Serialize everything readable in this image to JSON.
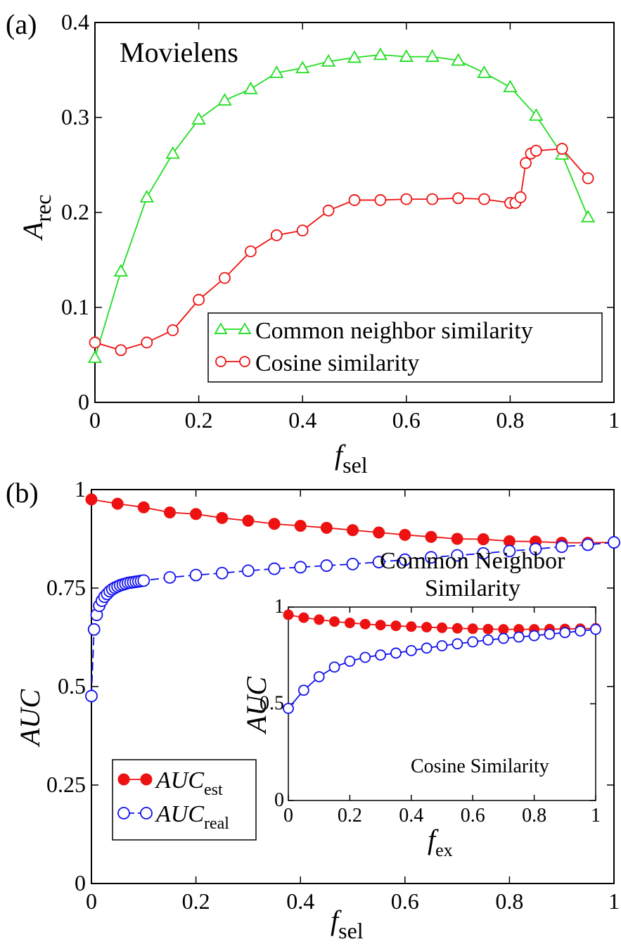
{
  "chart_data": [
    {
      "type": "line",
      "panel_label": "(a)",
      "title": "Movielens",
      "xlabel": "f",
      "xlabel_sub": "sel",
      "ylabel": "A",
      "ylabel_sub": "rec",
      "xlim": [
        0,
        1
      ],
      "ylim": [
        0,
        0.4
      ],
      "xticks": [
        "0",
        "0.2",
        "0.4",
        "0.6",
        "0.8",
        "1"
      ],
      "yticks": [
        "0",
        "0.1",
        "0.2",
        "0.3",
        "0.4"
      ],
      "legend_position": "bottom-right",
      "series": [
        {
          "name": "Common neighbor similarity",
          "color": "#22dd22",
          "marker": "triangle",
          "x": [
            0,
            0.05,
            0.1,
            0.15,
            0.2,
            0.25,
            0.3,
            0.35,
            0.4,
            0.45,
            0.5,
            0.55,
            0.6,
            0.65,
            0.7,
            0.75,
            0.8,
            0.85,
            0.9,
            0.95
          ],
          "y": [
            0.047,
            0.138,
            0.216,
            0.262,
            0.298,
            0.318,
            0.33,
            0.347,
            0.352,
            0.359,
            0.363,
            0.366,
            0.364,
            0.364,
            0.36,
            0.347,
            0.332,
            0.302,
            0.261,
            0.195
          ]
        },
        {
          "name": "Cosine similarity",
          "color": "#ee1111",
          "marker": "circle",
          "x": [
            0,
            0.05,
            0.1,
            0.15,
            0.2,
            0.25,
            0.3,
            0.35,
            0.4,
            0.45,
            0.5,
            0.55,
            0.6,
            0.65,
            0.7,
            0.75,
            0.8,
            0.81,
            0.82,
            0.83,
            0.84,
            0.85,
            0.9,
            0.95
          ],
          "y": [
            0.063,
            0.055,
            0.063,
            0.076,
            0.108,
            0.131,
            0.159,
            0.176,
            0.181,
            0.202,
            0.213,
            0.213,
            0.214,
            0.214,
            0.215,
            0.214,
            0.21,
            0.21,
            0.216,
            0.252,
            0.262,
            0.265,
            0.267,
            0.236
          ]
        }
      ]
    },
    {
      "type": "line",
      "panel_label": "(b)",
      "xlabel": "f",
      "xlabel_sub": "sel",
      "ylabel": "AUC",
      "xlim": [
        0,
        1
      ],
      "ylim": [
        0,
        1
      ],
      "xticks": [
        "0",
        "0.2",
        "0.4",
        "0.6",
        "0.8",
        "1"
      ],
      "yticks": [
        "0",
        "0.25",
        "0.5",
        "0.75",
        "1"
      ],
      "annotation": [
        "Common Neighbor",
        "Similarity"
      ],
      "legend_position": "bottom-left",
      "series": [
        {
          "name": "AUC",
          "name_sub": "est",
          "color": "#ee1111",
          "marker": "filled-circle",
          "line": "solid",
          "x": [
            0,
            0.05,
            0.1,
            0.15,
            0.2,
            0.25,
            0.3,
            0.35,
            0.4,
            0.45,
            0.5,
            0.55,
            0.6,
            0.65,
            0.7,
            0.75,
            0.8,
            0.85,
            0.9,
            0.95,
            1
          ],
          "y": [
            0.975,
            0.964,
            0.955,
            0.942,
            0.938,
            0.928,
            0.921,
            0.913,
            0.908,
            0.903,
            0.897,
            0.891,
            0.885,
            0.88,
            0.875,
            0.874,
            0.869,
            0.868,
            0.865,
            0.865,
            0.866
          ]
        },
        {
          "name": "AUC",
          "name_sub": "real",
          "color": "#1111ee",
          "marker": "circle",
          "line": "dashed",
          "x": [
            0,
            0.005,
            0.01,
            0.015,
            0.02,
            0.025,
            0.03,
            0.035,
            0.04,
            0.045,
            0.05,
            0.055,
            0.06,
            0.065,
            0.07,
            0.075,
            0.08,
            0.085,
            0.09,
            0.095,
            0.1,
            0.15,
            0.2,
            0.25,
            0.3,
            0.35,
            0.4,
            0.45,
            0.5,
            0.55,
            0.6,
            0.65,
            0.7,
            0.75,
            0.8,
            0.85,
            0.9,
            0.95,
            1
          ],
          "y": [
            0.476,
            0.645,
            0.682,
            0.705,
            0.718,
            0.728,
            0.735,
            0.742,
            0.747,
            0.751,
            0.754,
            0.757,
            0.759,
            0.761,
            0.763,
            0.764,
            0.765,
            0.766,
            0.767,
            0.768,
            0.769,
            0.777,
            0.783,
            0.788,
            0.794,
            0.799,
            0.803,
            0.807,
            0.811,
            0.816,
            0.822,
            0.828,
            0.833,
            0.838,
            0.844,
            0.849,
            0.855,
            0.86,
            0.866
          ]
        }
      ],
      "inset": {
        "type": "line",
        "xlabel": "f",
        "xlabel_sub": "ex",
        "ylabel": "AUC",
        "annotation": "Cosine Similarity",
        "xlim": [
          0,
          1
        ],
        "ylim": [
          0,
          1
        ],
        "xticks": [
          "0",
          "0.2",
          "0.4",
          "0.6",
          "0.8",
          "1"
        ],
        "yticks": [
          "0",
          "0.5",
          "1"
        ],
        "series": [
          {
            "name": "AUC",
            "name_sub": "est",
            "color": "#ee1111",
            "marker": "filled-circle",
            "x": [
              0,
              0.05,
              0.1,
              0.15,
              0.2,
              0.25,
              0.3,
              0.35,
              0.4,
              0.45,
              0.5,
              0.55,
              0.6,
              0.65,
              0.7,
              0.75,
              0.8,
              0.85,
              0.9,
              0.95,
              1
            ],
            "y": [
              0.96,
              0.945,
              0.935,
              0.925,
              0.918,
              0.912,
              0.907,
              0.903,
              0.899,
              0.896,
              0.893,
              0.89,
              0.888,
              0.886,
              0.885,
              0.885,
              0.885,
              0.886,
              0.887,
              0.888,
              0.89
            ]
          },
          {
            "name": "AUC",
            "name_sub": "real",
            "color": "#1111ee",
            "marker": "circle",
            "x": [
              0,
              0.05,
              0.1,
              0.15,
              0.2,
              0.25,
              0.3,
              0.35,
              0.4,
              0.45,
              0.5,
              0.55,
              0.6,
              0.65,
              0.7,
              0.75,
              0.8,
              0.85,
              0.9,
              0.95,
              1
            ],
            "y": [
              0.476,
              0.57,
              0.64,
              0.69,
              0.72,
              0.74,
              0.752,
              0.762,
              0.775,
              0.788,
              0.8,
              0.81,
              0.82,
              0.83,
              0.838,
              0.845,
              0.852,
              0.86,
              0.868,
              0.876,
              0.885
            ]
          }
        ]
      }
    }
  ]
}
